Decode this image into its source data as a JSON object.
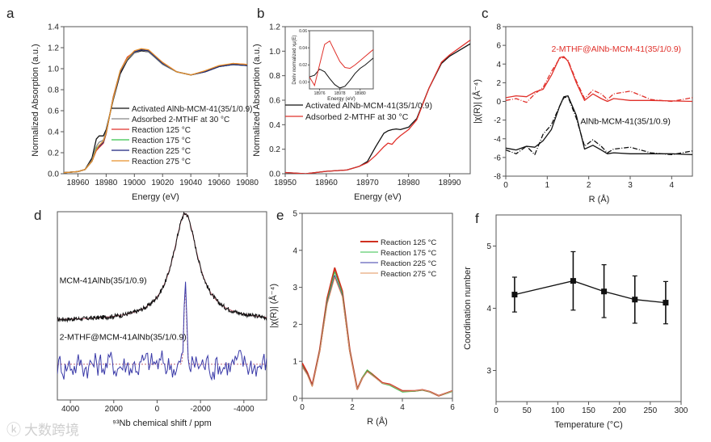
{
  "watermark": "大数跨境",
  "chart_data": [
    {
      "id": "a",
      "type": "line",
      "panel_label": "a",
      "xlabel": "Energy (eV)",
      "ylabel": "Normalized Absorption (a.u.)",
      "xlim": [
        18950,
        19080
      ],
      "ylim": [
        0,
        1.4
      ],
      "xticks": [
        18960,
        18980,
        19000,
        19020,
        19040,
        19060,
        19080
      ],
      "xticklabels": [
        "18960",
        "18980",
        "19000",
        "19020",
        "19040",
        "19060",
        "19080"
      ],
      "yticks": [
        0,
        0.2,
        0.4,
        0.6,
        0.8,
        1.0,
        1.2,
        1.4
      ],
      "yticklabels": [
        "0.0",
        "0.2",
        "0.4",
        "0.6",
        "0.8",
        "1.0",
        "1.2",
        "1.4"
      ],
      "legend_position": "center-right",
      "x": [
        18950,
        18960,
        18965,
        18970,
        18973,
        18975,
        18978,
        18980,
        18985,
        18990,
        18995,
        19000,
        19005,
        19010,
        19020,
        19030,
        19040,
        19050,
        19060,
        19070,
        19080
      ],
      "series": [
        {
          "name": "Activated AlNb-MCM-41(35/1/0.9)",
          "color": "#111111",
          "y": [
            0.01,
            0.02,
            0.04,
            0.15,
            0.33,
            0.36,
            0.36,
            0.42,
            0.7,
            0.95,
            1.08,
            1.15,
            1.17,
            1.16,
            1.05,
            0.97,
            0.94,
            0.97,
            1.02,
            1.04,
            1.03
          ]
        },
        {
          "name": "Adsorbed 2-MTHF at 30 °C",
          "color": "#888888",
          "y": [
            0.01,
            0.02,
            0.04,
            0.13,
            0.26,
            0.3,
            0.32,
            0.4,
            0.71,
            0.97,
            1.09,
            1.15,
            1.18,
            1.16,
            1.04,
            0.97,
            0.94,
            0.97,
            1.02,
            1.04,
            1.03
          ]
        },
        {
          "name": "Reaction 125 °C",
          "color": "#e0302a",
          "y": [
            0.01,
            0.02,
            0.04,
            0.12,
            0.22,
            0.25,
            0.29,
            0.38,
            0.73,
            0.98,
            1.11,
            1.16,
            1.18,
            1.17,
            1.06,
            0.97,
            0.94,
            0.97,
            1.02,
            1.05,
            1.04
          ]
        },
        {
          "name": "Reaction 175 °C",
          "color": "#36c24a",
          "y": [
            0.01,
            0.02,
            0.04,
            0.12,
            0.24,
            0.27,
            0.3,
            0.39,
            0.72,
            0.98,
            1.1,
            1.16,
            1.18,
            1.17,
            1.05,
            0.97,
            0.94,
            0.97,
            1.02,
            1.04,
            1.03
          ]
        },
        {
          "name": "Reaction 225 °C",
          "color": "#1a237e",
          "y": [
            0.01,
            0.02,
            0.04,
            0.12,
            0.23,
            0.26,
            0.3,
            0.39,
            0.72,
            0.97,
            1.1,
            1.16,
            1.18,
            1.17,
            1.05,
            0.97,
            0.94,
            0.97,
            1.02,
            1.04,
            1.03
          ]
        },
        {
          "name": "Reaction 275 °C",
          "color": "#e8902a",
          "y": [
            0.01,
            0.02,
            0.04,
            0.12,
            0.23,
            0.27,
            0.31,
            0.39,
            0.72,
            0.98,
            1.1,
            1.17,
            1.19,
            1.18,
            1.06,
            0.97,
            0.94,
            0.98,
            1.03,
            1.05,
            1.04
          ]
        }
      ]
    },
    {
      "id": "b",
      "type": "line",
      "panel_label": "b",
      "xlabel": "Energy (eV)",
      "ylabel": "Normalized Absorption (a.u.)",
      "xlim": [
        18950,
        18995
      ],
      "ylim": [
        0,
        1.2
      ],
      "xticks": [
        18950,
        18960,
        18970,
        18980,
        18990
      ],
      "xticklabels": [
        "18950",
        "18960",
        "18970",
        "18980",
        "18990"
      ],
      "yticks": [
        0,
        0.2,
        0.4,
        0.6,
        0.8,
        1.0,
        1.2
      ],
      "yticklabels": [
        "0.0",
        "0.2",
        "0.4",
        "0.6",
        "0.8",
        "1.0",
        "1.2"
      ],
      "legend_position": "center-left",
      "x": [
        18950,
        18955,
        18960,
        18965,
        18968,
        18970,
        18972,
        18974,
        18975,
        18976,
        18977,
        18978,
        18980,
        18982,
        18985,
        18988,
        18990,
        18995
      ],
      "series": [
        {
          "name": "Activated AlNb-MCM-41(35/1/0.9)",
          "color": "#111111",
          "y": [
            0.01,
            0.0,
            0.02,
            0.03,
            0.06,
            0.1,
            0.22,
            0.33,
            0.35,
            0.36,
            0.365,
            0.36,
            0.38,
            0.45,
            0.7,
            0.9,
            0.96,
            1.06
          ]
        },
        {
          "name": "Adsorbed 2-MTHF at 30 °C",
          "color": "#e0302a",
          "y": [
            0.01,
            0.0,
            0.02,
            0.03,
            0.06,
            0.09,
            0.15,
            0.22,
            0.25,
            0.24,
            0.28,
            0.31,
            0.36,
            0.44,
            0.7,
            0.91,
            0.97,
            1.09
          ]
        }
      ],
      "inset": {
        "ylabel": "Deriv normalized xμ(E)",
        "xlabel": "Energy (eV)",
        "xlim": [
          18975,
          18981.3
        ],
        "ylim": [
          -0.008,
          0.06
        ],
        "xticks": [
          18976,
          18978,
          18980
        ],
        "xticklabels": [
          "18976",
          "18978",
          "18980"
        ],
        "yticks": [
          0,
          0.02,
          0.04,
          0.06
        ],
        "yticklabels": [
          "0.00",
          "0.02",
          "0.04",
          "0.06"
        ],
        "x": [
          18975,
          18975.5,
          18976,
          18976.5,
          18977,
          18977.5,
          18978,
          18978.5,
          18979,
          18979.5,
          18980,
          18980.5,
          18981.3
        ],
        "series": [
          {
            "name": "Activated AlNb-MCM-41(35/1/0.9)",
            "color": "#111111",
            "y": [
              0.006,
              0.008,
              0.015,
              0.012,
              0.004,
              -0.003,
              -0.007,
              -0.005,
              0.002,
              0.01,
              0.016,
              0.02,
              0.028
            ]
          },
          {
            "name": "Adsorbed 2-MTHF at 30 °C",
            "color": "#e0302a",
            "y": [
              0.006,
              -0.004,
              0.02,
              0.044,
              0.048,
              0.036,
              0.024,
              0.017,
              0.016,
              0.02,
              0.025,
              0.03,
              0.038
            ]
          }
        ]
      }
    },
    {
      "id": "c",
      "type": "line",
      "panel_label": "c",
      "xlabel": "R (Å)",
      "ylabel": "|χ(R)|  (Å⁻⁴)",
      "xlim": [
        0,
        4.5
      ],
      "ylim": [
        -8,
        8
      ],
      "xticks": [
        0,
        1,
        2,
        3,
        4
      ],
      "xticklabels": [
        "0",
        "1",
        "2",
        "3",
        "4"
      ],
      "yticks": [
        -8,
        -6,
        -4,
        -2,
        0,
        2,
        4,
        6,
        8
      ],
      "yticklabels": [
        "-8",
        "-6",
        "-4",
        "-2",
        "0",
        "2",
        "4",
        "6",
        "8"
      ],
      "annotations": [
        {
          "text": "2-MTHF@AlNb-MCM-41(35/1/0.9)",
          "color": "#e0302a",
          "x": 1.1,
          "y": 5.3
        },
        {
          "text": "AlNb-MCM-41(35/1/0.9)",
          "color": "#111111",
          "x": 1.8,
          "y": -2.4
        }
      ],
      "x": [
        0,
        0.25,
        0.5,
        0.7,
        0.9,
        1.1,
        1.3,
        1.4,
        1.5,
        1.7,
        1.9,
        2.1,
        2.3,
        2.45,
        2.6,
        3.0,
        3.5,
        4.0,
        4.5
      ],
      "series": [
        {
          "name": "2-MTHF@AlNb-MCM-41 experiment",
          "color": "#e0302a",
          "dash": "",
          "y": [
            0.4,
            0.6,
            0.5,
            1.0,
            1.3,
            2.8,
            4.7,
            4.8,
            4.3,
            2.0,
            0.1,
            0.8,
            0.3,
            0.0,
            0.3,
            0.1,
            0.1,
            0.05,
            0.0
          ]
        },
        {
          "name": "2-MTHF@AlNb-MCM-41 fit",
          "color": "#e0302a",
          "dash": "6 2 1 2",
          "y": [
            0.1,
            0.3,
            -0.1,
            0.8,
            1.5,
            3.2,
            4.6,
            4.7,
            4.4,
            2.2,
            0.3,
            1.2,
            0.8,
            0.2,
            0.8,
            1.1,
            0.2,
            0.0,
            0.4
          ]
        },
        {
          "name": "AlNb-MCM-41 experiment",
          "color": "#111111",
          "dash": "",
          "y": [
            -5.0,
            -5.2,
            -4.8,
            -4.9,
            -4.2,
            -3.0,
            -0.5,
            0.5,
            0.6,
            -1.5,
            -5.1,
            -4.7,
            -5.2,
            -5.6,
            -5.5,
            -5.6,
            -5.6,
            -5.6,
            -5.7
          ]
        },
        {
          "name": "AlNb-MCM-41 fit",
          "color": "#111111",
          "dash": "6 2 1 2",
          "y": [
            -5.2,
            -5.6,
            -4.8,
            -5.7,
            -3.5,
            -2.5,
            -0.5,
            0.4,
            0.5,
            -1.8,
            -4.8,
            -4.1,
            -4.8,
            -5.5,
            -5.1,
            -4.9,
            -5.5,
            -5.7,
            -5.3
          ]
        }
      ]
    },
    {
      "id": "d",
      "type": "line",
      "panel_label": "d",
      "xlabel": "⁹³Nb chemical shift / ppm",
      "ylabel": "",
      "xlim": [
        4600,
        -5050
      ],
      "ylim": [
        0,
        1
      ],
      "xticks": [
        4000,
        2000,
        0,
        -2000,
        -4000
      ],
      "xticklabels": [
        "4000",
        "2000",
        "0",
        "-2000",
        "-4000"
      ],
      "yticks": [],
      "yticklabels": [],
      "annotations": [
        {
          "text": "MCM-41AlNb(35/1/0.9)",
          "color": "#111111",
          "x": 4500,
          "y": 0.62
        },
        {
          "text": "2-MTHF@MCM-41AlNb(35/1/0.9)",
          "color": "#111111",
          "x": 4500,
          "y": 0.32
        }
      ],
      "spectra": [
        {
          "name": "MCM-41AlNb(35/1/0.9)",
          "color": "#111111",
          "fit_color": "#c06070",
          "baseline": 0.42,
          "peak_height": 0.57,
          "peak_center_ppm": -1300,
          "peak_width_ppm": 700,
          "noise": 0.012
        },
        {
          "name": "2-MTHF@MCM-41AlNb(35/1/0.9)",
          "color": "#3a3aa8",
          "fit_color": "#c06070",
          "baseline": 0.19,
          "peak_height": 0.42,
          "peak_center_ppm": -1300,
          "peak_width_ppm": 80,
          "noise": 0.07
        }
      ]
    },
    {
      "id": "e",
      "type": "line",
      "panel_label": "e",
      "xlabel": "R (Å)",
      "ylabel": "|χ(R)|  (Å⁻⁴)",
      "xlim": [
        0,
        6
      ],
      "ylim": [
        0,
        5
      ],
      "xticks": [
        0,
        2,
        4,
        6
      ],
      "xticklabels": [
        "0",
        "2",
        "4",
        "6"
      ],
      "yticks": [
        0,
        1,
        2,
        3,
        4,
        5
      ],
      "yticklabels": [
        "0",
        "1",
        "2",
        "3",
        "4",
        "5"
      ],
      "legend_position": "top-right",
      "x": [
        0,
        0.2,
        0.4,
        0.7,
        1.0,
        1.3,
        1.6,
        1.9,
        2.2,
        2.4,
        2.6,
        2.8,
        3.2,
        3.5,
        4.0,
        4.5,
        4.8,
        5.1,
        5.45,
        5.8,
        6.0
      ],
      "series": [
        {
          "name": "Reaction 125 °C",
          "color": "#d03020",
          "width": 2,
          "y": [
            0.95,
            0.7,
            0.35,
            1.3,
            2.7,
            3.52,
            2.9,
            1.3,
            0.25,
            0.55,
            0.75,
            0.65,
            0.42,
            0.38,
            0.2,
            0.2,
            0.23,
            0.18,
            0.07,
            0.15,
            0.2
          ]
        },
        {
          "name": "Reaction 175 °C",
          "color": "#36c24a",
          "width": 1,
          "y": [
            0.88,
            0.66,
            0.33,
            1.28,
            2.64,
            3.42,
            2.84,
            1.28,
            0.24,
            0.56,
            0.77,
            0.64,
            0.4,
            0.35,
            0.17,
            0.19,
            0.22,
            0.17,
            0.07,
            0.14,
            0.19
          ]
        },
        {
          "name": "Reaction 225 °C",
          "color": "#3a3aa8",
          "width": 1,
          "y": [
            0.86,
            0.65,
            0.33,
            1.26,
            2.58,
            3.32,
            2.78,
            1.26,
            0.24,
            0.54,
            0.72,
            0.62,
            0.41,
            0.37,
            0.19,
            0.2,
            0.23,
            0.18,
            0.07,
            0.15,
            0.2
          ]
        },
        {
          "name": "Reaction 275 °C",
          "color": "#e0905a",
          "width": 1,
          "y": [
            0.85,
            0.64,
            0.32,
            1.25,
            2.55,
            3.27,
            2.75,
            1.25,
            0.24,
            0.54,
            0.72,
            0.62,
            0.41,
            0.37,
            0.19,
            0.2,
            0.23,
            0.18,
            0.07,
            0.15,
            0.2
          ]
        }
      ]
    },
    {
      "id": "f",
      "type": "scatter",
      "panel_label": "f",
      "xlabel": "Temperature (°C)",
      "ylabel": "Coordination number",
      "xlim": [
        0,
        300
      ],
      "ylim": [
        2.5,
        5.5
      ],
      "xticks": [
        0,
        50,
        100,
        150,
        200,
        250,
        300
      ],
      "xticklabels": [
        "0",
        "50",
        "100",
        "150",
        "200",
        "250",
        "300"
      ],
      "yticks": [
        3,
        4,
        5
      ],
      "yticklabels": [
        "3",
        "4",
        "5"
      ],
      "x": [
        30,
        125,
        175,
        225,
        275
      ],
      "series": [
        {
          "name": "Coordination number",
          "color": "#111111",
          "y": [
            4.22,
            4.44,
            4.27,
            4.14,
            4.09
          ],
          "err_upper": [
            4.5,
            4.91,
            4.7,
            4.52,
            4.43
          ],
          "err_lower": [
            3.94,
            3.97,
            3.85,
            3.76,
            3.75
          ]
        }
      ]
    }
  ]
}
